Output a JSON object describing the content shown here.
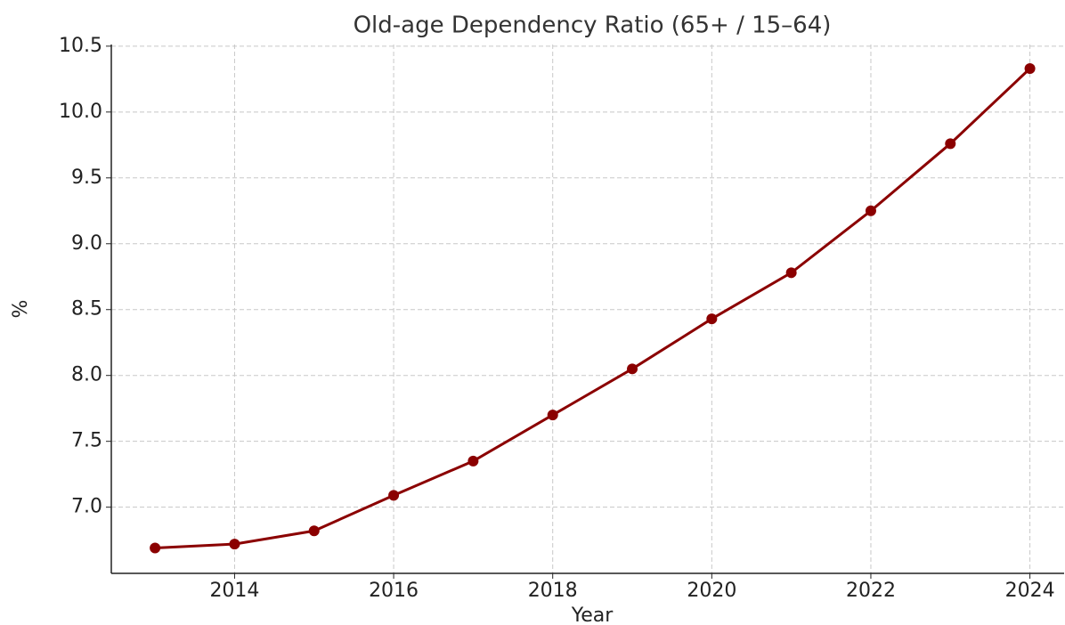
{
  "chart_data": {
    "type": "line",
    "title": "Old-age Dependency Ratio (65+ / 15–64)",
    "xlabel": "Year",
    "ylabel": "%",
    "x": [
      2013,
      2014,
      2015,
      2016,
      2017,
      2018,
      2019,
      2020,
      2021,
      2022,
      2023,
      2024
    ],
    "series": [
      {
        "name": "Old-age dependency ratio",
        "color": "#8b0000",
        "values": [
          6.69,
          6.72,
          6.82,
          7.09,
          7.35,
          7.7,
          8.05,
          8.43,
          8.78,
          9.25,
          9.76,
          10.33
        ]
      }
    ],
    "xlim": [
      2012.45,
      2024.43
    ],
    "xticks": [
      2014,
      2016,
      2018,
      2020,
      2022,
      2024
    ],
    "ylim": [
      6.4975,
      10.5125
    ],
    "yticks": [
      {
        "value": 7,
        "label": "7.0"
      },
      {
        "value": 7.5,
        "label": "7.5"
      },
      {
        "value": 8,
        "label": "8.0"
      },
      {
        "value": 8.5,
        "label": "8.5"
      },
      {
        "value": 9,
        "label": "9.0"
      },
      {
        "value": 9.5,
        "label": "9.5"
      },
      {
        "value": 10,
        "label": "10.0"
      },
      {
        "value": 10.5,
        "label": "10.5"
      }
    ],
    "grid": true
  }
}
